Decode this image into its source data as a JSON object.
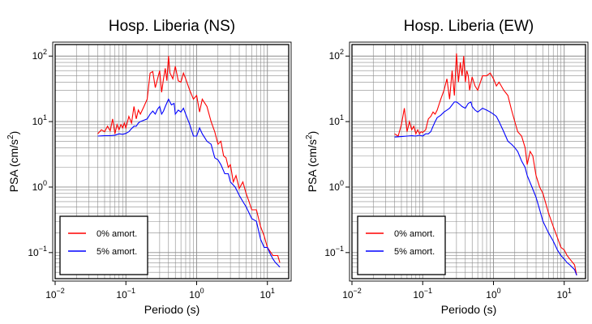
{
  "chart_data": [
    {
      "type": "line",
      "title": "Hosp. Liberia (NS)",
      "xlabel": "Periodo (s)",
      "ylabel_main": "PSA (cm/s",
      "ylabel_exp": "2",
      "ylabel_end": ")",
      "xscale": "log",
      "yscale": "log",
      "xlim": [
        0.01,
        20
      ],
      "ylim": [
        0.04,
        150
      ],
      "grid": true,
      "legend_position": "bottom-left",
      "x_ticks": [
        {
          "base": "10",
          "exp": "−2",
          "value": 0.01
        },
        {
          "base": "10",
          "exp": "−1",
          "value": 0.1
        },
        {
          "base": "10",
          "exp": "0",
          "value": 1
        },
        {
          "base": "10",
          "exp": "1",
          "value": 10
        }
      ],
      "y_ticks": [
        {
          "base": "10",
          "exp": "−1",
          "value": 0.1
        },
        {
          "base": "10",
          "exp": "0",
          "value": 1
        },
        {
          "base": "10",
          "exp": "1",
          "value": 10
        },
        {
          "base": "10",
          "exp": "2",
          "value": 100
        }
      ],
      "series": [
        {
          "name": "0% amort.",
          "color": "#ff0000",
          "x": [
            0.04,
            0.045,
            0.05,
            0.055,
            0.06,
            0.065,
            0.07,
            0.075,
            0.08,
            0.085,
            0.09,
            0.095,
            0.1,
            0.11,
            0.12,
            0.13,
            0.14,
            0.15,
            0.16,
            0.18,
            0.2,
            0.22,
            0.24,
            0.26,
            0.28,
            0.3,
            0.32,
            0.34,
            0.36,
            0.38,
            0.4,
            0.42,
            0.44,
            0.46,
            0.5,
            0.55,
            0.6,
            0.65,
            0.7,
            0.8,
            0.9,
            1.0,
            1.1,
            1.2,
            1.4,
            1.6,
            1.8,
            2.0,
            2.2,
            2.4,
            2.6,
            2.8,
            3.0,
            3.3,
            3.6,
            4.0,
            4.5,
            5.0,
            5.5,
            6.0,
            7.0,
            8.0,
            9.0,
            10.0,
            12.0,
            14.0,
            15.0
          ],
          "values": [
            6.5,
            7.5,
            7.0,
            8.5,
            7.2,
            11.0,
            6.5,
            9.0,
            7.5,
            9.0,
            8.0,
            9.5,
            8.0,
            12.0,
            9.5,
            17.0,
            11.0,
            15.0,
            13.0,
            17.0,
            22.0,
            55.0,
            58.0,
            33.0,
            45.0,
            60.0,
            28.0,
            45.0,
            65.0,
            42.0,
            100.0,
            55.0,
            50.0,
            45.0,
            70.0,
            42.0,
            40.0,
            55.0,
            45.0,
            30.0,
            22.0,
            25.0,
            14.0,
            22.0,
            17.0,
            10.0,
            7.0,
            4.5,
            5.0,
            3.0,
            2.8,
            2.0,
            2.2,
            1.2,
            1.5,
            0.95,
            1.2,
            0.8,
            0.6,
            0.45,
            0.45,
            0.25,
            0.18,
            0.12,
            0.09,
            0.09,
            0.07
          ]
        },
        {
          "name": "5% amort.",
          "color": "#0000ff",
          "x": [
            0.04,
            0.05,
            0.06,
            0.07,
            0.08,
            0.09,
            0.1,
            0.11,
            0.12,
            0.13,
            0.14,
            0.15,
            0.16,
            0.18,
            0.2,
            0.22,
            0.24,
            0.26,
            0.28,
            0.3,
            0.32,
            0.34,
            0.36,
            0.4,
            0.44,
            0.48,
            0.5,
            0.55,
            0.6,
            0.65,
            0.7,
            0.8,
            0.9,
            1.0,
            1.1,
            1.2,
            1.4,
            1.6,
            1.8,
            2.0,
            2.2,
            2.5,
            2.8,
            3.0,
            3.5,
            4.0,
            4.5,
            5.0,
            6.0,
            7.0,
            8.0,
            9.0,
            10.0,
            11.0,
            12.0,
            13.0,
            14.0,
            15.0
          ],
          "values": [
            6.0,
            6.1,
            6.1,
            6.2,
            6.5,
            6.4,
            6.6,
            7.0,
            7.8,
            8.5,
            8.5,
            9.5,
            10.0,
            10.5,
            11.0,
            13.0,
            14.5,
            13.0,
            15.5,
            17.0,
            13.0,
            14.5,
            17.0,
            22.0,
            18.0,
            19.0,
            13.0,
            15.0,
            14.0,
            16.0,
            13.0,
            9.0,
            6.0,
            6.0,
            8.0,
            6.5,
            5.0,
            4.5,
            2.8,
            2.6,
            2.2,
            1.6,
            1.6,
            1.2,
            1.0,
            0.75,
            0.6,
            0.5,
            0.33,
            0.3,
            0.16,
            0.12,
            0.12,
            0.095,
            0.08,
            0.07,
            0.065,
            0.06
          ]
        }
      ]
    },
    {
      "type": "line",
      "title": "Hosp. Liberia (EW)",
      "xlabel": "Periodo (s)",
      "ylabel_main": "PSA (cm/s",
      "ylabel_exp": "2",
      "ylabel_end": ")",
      "xscale": "log",
      "yscale": "log",
      "xlim": [
        0.01,
        20
      ],
      "ylim": [
        0.04,
        150
      ],
      "grid": true,
      "legend_position": "bottom-left",
      "x_ticks": [
        {
          "base": "10",
          "exp": "−2",
          "value": 0.01
        },
        {
          "base": "10",
          "exp": "−1",
          "value": 0.1
        },
        {
          "base": "10",
          "exp": "0",
          "value": 1
        },
        {
          "base": "10",
          "exp": "1",
          "value": 10
        }
      ],
      "y_ticks": [
        {
          "base": "10",
          "exp": "−1",
          "value": 0.1
        },
        {
          "base": "10",
          "exp": "0",
          "value": 1
        },
        {
          "base": "10",
          "exp": "1",
          "value": 10
        },
        {
          "base": "10",
          "exp": "2",
          "value": 100
        }
      ],
      "series": [
        {
          "name": "0% amort.",
          "color": "#ff0000",
          "x": [
            0.04,
            0.045,
            0.05,
            0.055,
            0.06,
            0.065,
            0.07,
            0.075,
            0.08,
            0.085,
            0.09,
            0.095,
            0.1,
            0.11,
            0.12,
            0.13,
            0.14,
            0.15,
            0.16,
            0.18,
            0.2,
            0.22,
            0.24,
            0.26,
            0.28,
            0.3,
            0.32,
            0.34,
            0.36,
            0.38,
            0.4,
            0.42,
            0.44,
            0.46,
            0.5,
            0.55,
            0.6,
            0.7,
            0.8,
            0.9,
            1.0,
            1.1,
            1.2,
            1.4,
            1.6,
            1.8,
            2.0,
            2.2,
            2.5,
            2.8,
            3.0,
            3.3,
            3.6,
            4.0,
            4.5,
            5.0,
            6.0,
            7.0,
            8.0,
            9.0,
            10.0,
            11.0,
            12.0,
            14.0,
            15.0
          ],
          "values": [
            6.5,
            6.0,
            9.0,
            16.0,
            7.0,
            10.0,
            7.5,
            8.5,
            6.5,
            7.5,
            6.5,
            7.0,
            6.8,
            7.5,
            11.0,
            12.0,
            14.0,
            13.0,
            15.0,
            22.0,
            30.0,
            45.0,
            22.0,
            60.0,
            25.0,
            110.0,
            40.0,
            80.0,
            50.0,
            100.0,
            40.0,
            60.0,
            50.0,
            30.0,
            48.0,
            35.0,
            30.0,
            50.0,
            50.0,
            55.0,
            45.0,
            35.0,
            40.0,
            30.0,
            25.0,
            15.0,
            10.0,
            7.0,
            6.0,
            4.0,
            2.2,
            3.5,
            3.0,
            1.5,
            1.0,
            0.8,
            0.4,
            0.25,
            0.17,
            0.12,
            0.11,
            0.09,
            0.08,
            0.065,
            0.045
          ]
        },
        {
          "name": "5% amort.",
          "color": "#0000ff",
          "x": [
            0.04,
            0.05,
            0.06,
            0.07,
            0.08,
            0.09,
            0.1,
            0.11,
            0.12,
            0.13,
            0.14,
            0.15,
            0.16,
            0.18,
            0.2,
            0.22,
            0.24,
            0.26,
            0.28,
            0.3,
            0.32,
            0.34,
            0.36,
            0.4,
            0.44,
            0.48,
            0.5,
            0.55,
            0.6,
            0.7,
            0.8,
            0.9,
            1.0,
            1.1,
            1.2,
            1.4,
            1.6,
            1.8,
            2.0,
            2.2,
            2.5,
            2.8,
            3.0,
            3.5,
            4.0,
            4.5,
            5.0,
            6.0,
            7.0,
            8.0,
            9.0,
            10.0,
            11.0,
            12.0,
            14.0,
            15.0
          ],
          "values": [
            5.8,
            5.9,
            6.0,
            6.1,
            6.0,
            6.2,
            6.0,
            6.5,
            6.5,
            7.0,
            8.5,
            10.0,
            11.5,
            12.5,
            14.0,
            15.0,
            16.0,
            18.0,
            20.0,
            20.0,
            19.0,
            18.0,
            17.0,
            16.0,
            19.0,
            20.0,
            17.0,
            15.0,
            14.0,
            16.0,
            15.0,
            14.0,
            13.0,
            12.0,
            10.0,
            7.0,
            5.0,
            4.5,
            4.0,
            3.5,
            2.5,
            2.0,
            1.5,
            1.0,
            0.7,
            0.45,
            0.3,
            0.2,
            0.15,
            0.11,
            0.09,
            0.08,
            0.07,
            0.065,
            0.055,
            0.045
          ]
        }
      ]
    }
  ]
}
